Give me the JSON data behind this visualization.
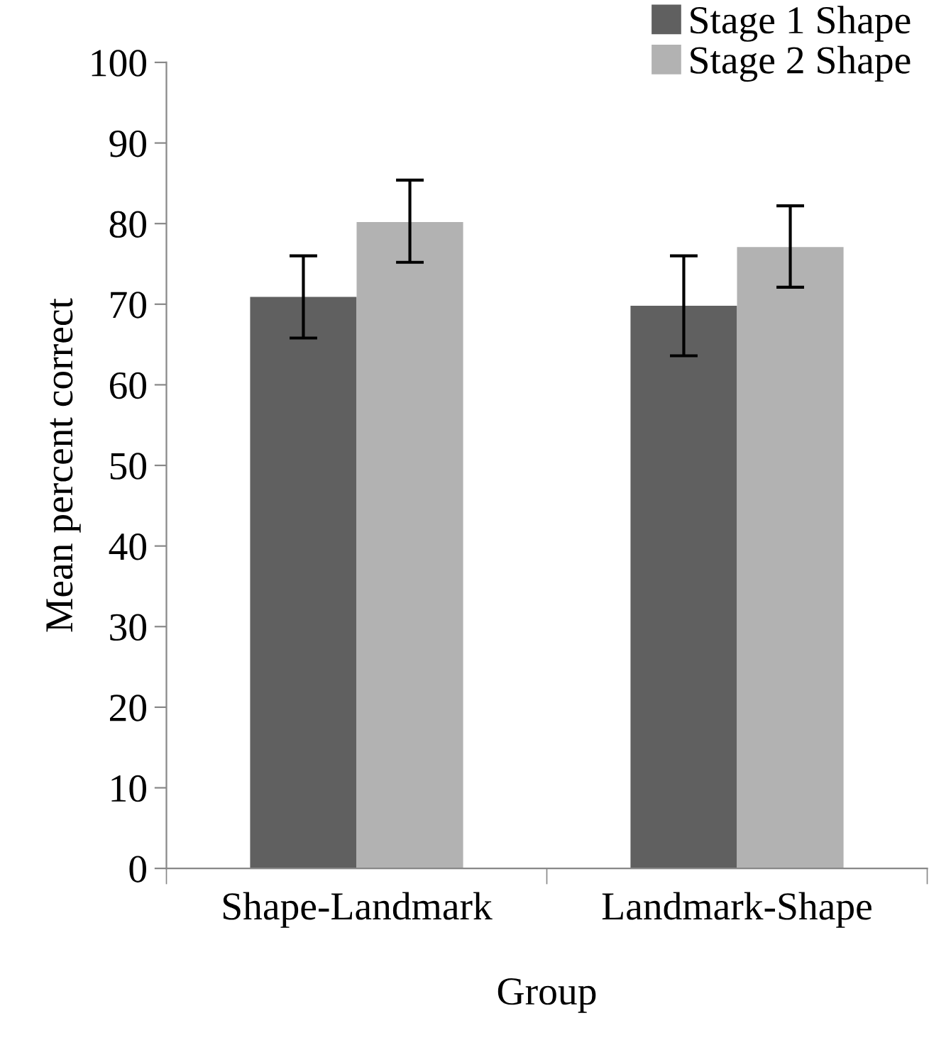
{
  "chart_data": {
    "type": "bar",
    "xlabel": "Group",
    "ylabel": "Mean percent correct",
    "categories": [
      "Shape-Landmark",
      "Landmark-Shape"
    ],
    "series": [
      {
        "name": "Stage 1 Shape",
        "color": "#606060",
        "values": [
          70.9,
          69.8
        ],
        "errors": [
          [
            65.8,
            76.0
          ],
          [
            63.6,
            76.0
          ]
        ]
      },
      {
        "name": "Stage 2 Shape",
        "color": "#b2b2b2",
        "values": [
          80.2,
          77.1
        ],
        "errors": [
          [
            75.2,
            85.4
          ],
          [
            72.1,
            82.2
          ]
        ]
      }
    ],
    "ylim": [
      0,
      100
    ],
    "yticks": [
      0,
      10,
      20,
      30,
      40,
      50,
      60,
      70,
      80,
      90,
      100
    ],
    "grid": false,
    "legend": "top right"
  }
}
